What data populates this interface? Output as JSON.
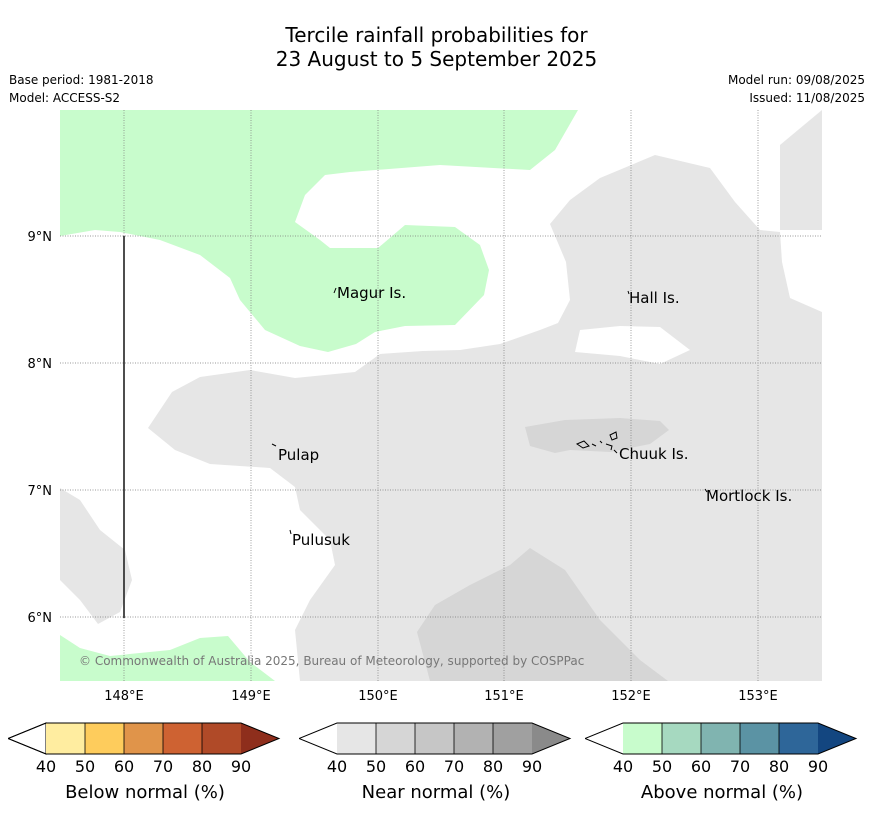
{
  "header": {
    "title_line1": "Tercile rainfall probabilities for",
    "title_line2": "23 August to 5 September 2025",
    "base_period": "Base period: 1981-2018",
    "model": "Model: ACCESS-S2",
    "model_run": "Model run: 09/08/2025",
    "issued": "Issued: 11/08/2025"
  },
  "map": {
    "lat_labels": [
      "9°N",
      "8°N",
      "7°N",
      "6°N"
    ],
    "lon_labels": [
      "148°E",
      "149°E",
      "150°E",
      "151°E",
      "152°E",
      "153°E"
    ],
    "places": [
      "Magur Is.",
      "Hall Is.",
      "Pulap",
      "Chuuk Is.",
      "Mortlock Is.",
      "Pulusuk"
    ],
    "copyright": "© Commonwealth of Australia 2025, Bureau of Meteorology, supported by COSPPac",
    "colors": {
      "near_normal_40": "#e6e6e6",
      "near_normal_50": "#d6d6d6",
      "above_normal_40": "#c8fccc"
    }
  },
  "legend": {
    "below": {
      "label": "Below normal (%)",
      "ticks": [
        "40",
        "50",
        "60",
        "70",
        "80",
        "90"
      ],
      "colors": [
        "#ffeda0",
        "#fecc5c",
        "#e0944a",
        "#ce6232",
        "#b04a28",
        "#8e2e1c"
      ]
    },
    "near": {
      "label": "Near normal (%)",
      "ticks": [
        "40",
        "50",
        "60",
        "70",
        "80",
        "90"
      ],
      "colors": [
        "#e6e6e6",
        "#d6d6d6",
        "#c6c6c6",
        "#b2b2b2",
        "#a0a0a0",
        "#8a8a8a"
      ]
    },
    "above": {
      "label": "Above normal (%)",
      "ticks": [
        "40",
        "50",
        "60",
        "70",
        "80",
        "90"
      ],
      "colors": [
        "#c8fccc",
        "#a6d9c0",
        "#80b4b0",
        "#5b93a4",
        "#2e6699",
        "#134680"
      ]
    }
  }
}
